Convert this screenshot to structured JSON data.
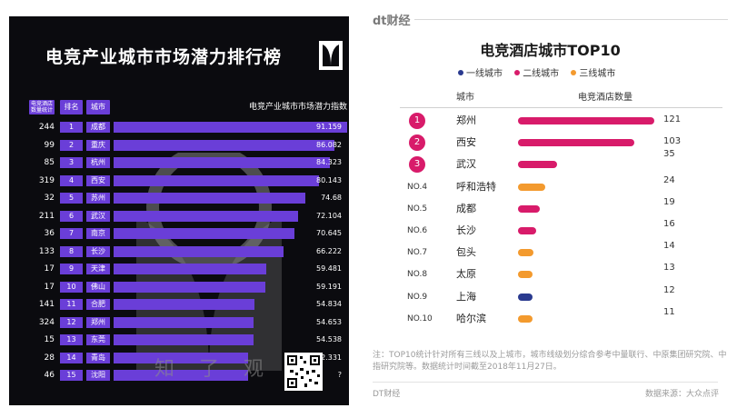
{
  "chart_data": [
    {
      "type": "bar",
      "title": "电竞产业城市市场潜力排行榜",
      "headers": {
        "count": "电竞酒店数量统计",
        "rank": "排名",
        "city": "城市",
        "index": "电竞产业城市市场潜力指数"
      },
      "rows": [
        {
          "count": "244",
          "rank": "1",
          "city": "成都",
          "value": 91.159,
          "label": "91.159"
        },
        {
          "count": "99",
          "rank": "2",
          "city": "重庆",
          "value": 86.082,
          "label": "86.082"
        },
        {
          "count": "85",
          "rank": "3",
          "city": "杭州",
          "value": 84.323,
          "label": "84.323"
        },
        {
          "count": "319",
          "rank": "4",
          "city": "西安",
          "value": 80.143,
          "label": "80.143"
        },
        {
          "count": "32",
          "rank": "5",
          "city": "苏州",
          "value": 74.68,
          "label": "74.68"
        },
        {
          "count": "211",
          "rank": "6",
          "city": "武汉",
          "value": 72.104,
          "label": "72.104"
        },
        {
          "count": "36",
          "rank": "7",
          "city": "南京",
          "value": 70.645,
          "label": "70.645"
        },
        {
          "count": "133",
          "rank": "8",
          "city": "长沙",
          "value": 66.222,
          "label": "66.222"
        },
        {
          "count": "17",
          "rank": "9",
          "city": "天津",
          "value": 59.481,
          "label": "59.481"
        },
        {
          "count": "17",
          "rank": "10",
          "city": "佛山",
          "value": 59.191,
          "label": "59.191"
        },
        {
          "count": "141",
          "rank": "11",
          "city": "合肥",
          "value": 54.834,
          "label": "54.834"
        },
        {
          "count": "324",
          "rank": "12",
          "city": "郑州",
          "value": 54.653,
          "label": "54.653"
        },
        {
          "count": "15",
          "rank": "13",
          "city": "东莞",
          "value": 54.538,
          "label": "54.538"
        },
        {
          "count": "28",
          "rank": "14",
          "city": "青岛",
          "value": 52.331,
          "label": "52.331"
        },
        {
          "count": "46",
          "rank": "15",
          "city": "沈阳",
          "value": 52.331,
          "label": "?"
        }
      ],
      "watermark": "知 了 观 点",
      "colors": {
        "bar": "#6a3ed8",
        "background": "#0b0b0f"
      }
    },
    {
      "type": "bar",
      "title": "电竞酒店城市TOP10",
      "legend": [
        {
          "name": "一线城市",
          "color": "#2a3a8f"
        },
        {
          "name": "二线城市",
          "color": "#d81b6a"
        },
        {
          "name": "三线城市",
          "color": "#f39a2e"
        }
      ],
      "headers": {
        "city": "城市",
        "value": "电竞酒店数量"
      },
      "rows": [
        {
          "rank": "1",
          "city": "郑州",
          "value": 121,
          "tier": "二线城市",
          "color": "#d81b6a"
        },
        {
          "rank": "2",
          "city": "西安",
          "value": 103,
          "tier": "二线城市",
          "color": "#d81b6a"
        },
        {
          "rank": "3",
          "city": "武汉",
          "value": 35,
          "tier": "二线城市",
          "color": "#d81b6a"
        },
        {
          "rank": "NO.4",
          "city": "呼和浩特",
          "value": 24,
          "tier": "三线城市",
          "color": "#f39a2e"
        },
        {
          "rank": "NO.5",
          "city": "成都",
          "value": 19,
          "tier": "二线城市",
          "color": "#d81b6a"
        },
        {
          "rank": "NO.6",
          "city": "长沙",
          "value": 16,
          "tier": "二线城市",
          "color": "#d81b6a"
        },
        {
          "rank": "NO.7",
          "city": "包头",
          "value": 14,
          "tier": "三线城市",
          "color": "#f39a2e"
        },
        {
          "rank": "NO.8",
          "city": "太原",
          "value": 13,
          "tier": "三线城市",
          "color": "#f39a2e"
        },
        {
          "rank": "NO.9",
          "city": "上海",
          "value": 12,
          "tier": "一线城市",
          "color": "#2a3a8f"
        },
        {
          "rank": "NO.10",
          "city": "哈尔滨",
          "value": 11,
          "tier": "三线城市",
          "color": "#f39a2e"
        }
      ],
      "brand": "dt财经",
      "note": "注：TOP10统计针对所有三线以及上城市，城市线级划分综合参考中量联行、中原集团研究院、中指研究院等。数据统计时间截至2018年11月27日。",
      "footer_left": "DT财经",
      "footer_right": "数据来源：大众点评"
    }
  ]
}
